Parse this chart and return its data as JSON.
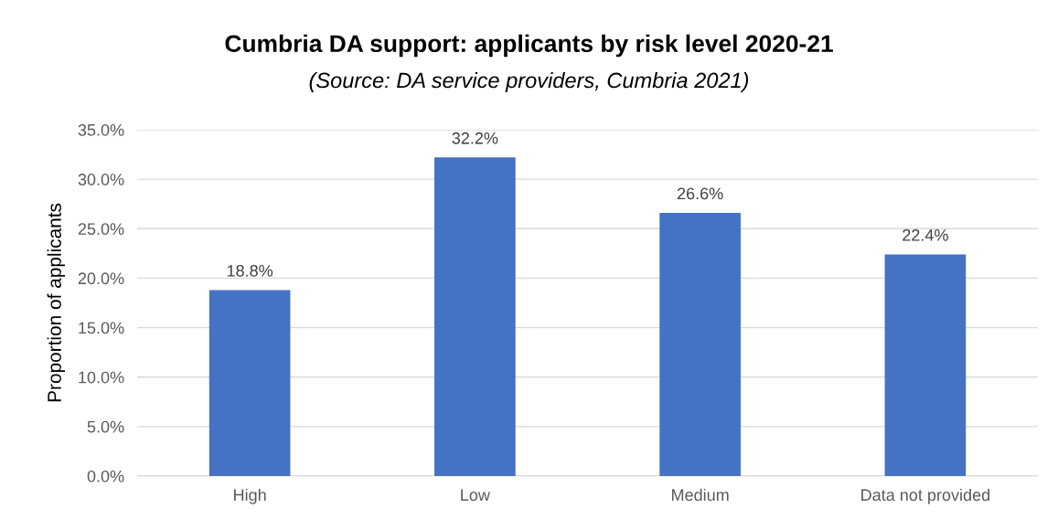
{
  "chart_data": {
    "type": "bar",
    "title": "Cumbria DA support: applicants by risk level 2020-21",
    "subtitle": "(Source: DA service providers, Cumbria 2021)",
    "ylabel": "Proportion of applicants",
    "categories": [
      "High",
      "Low",
      "Medium",
      "Data not provided"
    ],
    "values": [
      18.8,
      32.2,
      26.6,
      22.4
    ],
    "value_labels": [
      "18.8%",
      "32.2%",
      "26.6%",
      "22.4%"
    ],
    "color": "#4472c4",
    "ylim": [
      0,
      35
    ],
    "yticks": [
      {
        "value": 0,
        "label": "0.0%"
      },
      {
        "value": 5,
        "label": "5.0%"
      },
      {
        "value": 10,
        "label": "10.0%"
      },
      {
        "value": 15,
        "label": "15.0%"
      },
      {
        "value": 20,
        "label": "20.0%"
      },
      {
        "value": 25,
        "label": "25.0%"
      },
      {
        "value": 30,
        "label": "30.0%"
      },
      {
        "value": 35,
        "label": "35.0%"
      }
    ],
    "grid": "y",
    "legend": false
  }
}
